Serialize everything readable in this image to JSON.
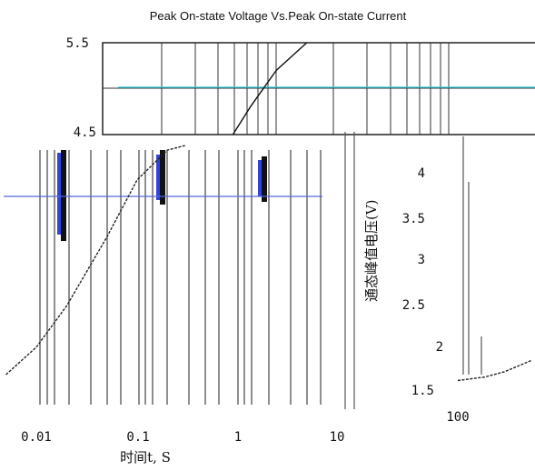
{
  "chart_data": [
    {
      "type": "line",
      "title": "Peak On-state Voltage Vs.Peak On-state Current",
      "xlabel": "",
      "ylabel": "",
      "x_tick_labels": [],
      "y_tick_labels": [
        "5.5",
        "4.5"
      ],
      "ylim": [
        4.5,
        5.5
      ],
      "grid": true,
      "series": [
        {
          "x": [
            0.3,
            0.34,
            0.4,
            0.47
          ],
          "y": [
            4.5,
            4.8,
            5.2,
            5.5
          ]
        }
      ]
    },
    {
      "type": "line",
      "title": "",
      "xlabel": "时间t, S",
      "ylabel": "",
      "x_tick_labels": [
        "0.01",
        "0.1",
        "1",
        "10"
      ],
      "xlim": [
        0.005,
        20
      ],
      "x_scale": "log",
      "grid": true,
      "series": [
        {
          "x": [
            0.005,
            0.01,
            0.02,
            0.05,
            0.1,
            0.2,
            0.3
          ],
          "y": [
            0.0,
            0.12,
            0.3,
            0.6,
            0.85,
            0.98,
            1.0
          ]
        }
      ]
    },
    {
      "type": "line",
      "title": "",
      "xlabel": "",
      "ylabel": "通态峰值电压(V)",
      "x_tick_labels": [
        "100"
      ],
      "y_tick_labels": [
        "4",
        "3.5",
        "3",
        "2.5",
        "2",
        "1.5"
      ],
      "ylim": [
        1.5,
        4
      ],
      "grid": true,
      "series": [
        {
          "x": [
            100,
            150,
            200,
            300
          ],
          "y": [
            1.62,
            1.66,
            1.72,
            1.85
          ]
        }
      ]
    }
  ]
}
